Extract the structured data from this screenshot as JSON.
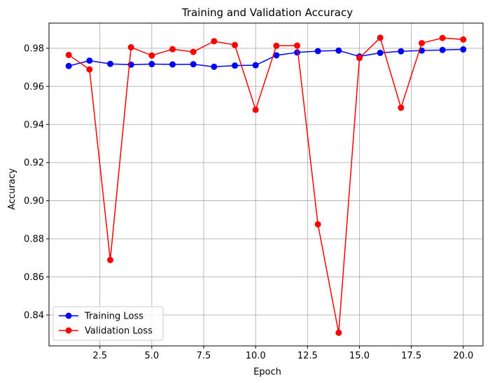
{
  "chart_data": {
    "type": "line",
    "title": "Training and Validation Accuracy",
    "xlabel": "Epoch",
    "ylabel": "Accuracy",
    "xlim": [
      0.05,
      20.95
    ],
    "ylim": [
      0.8238,
      0.9932
    ],
    "xticks": [
      2.5,
      5.0,
      7.5,
      10.0,
      12.5,
      15.0,
      17.5,
      20.0
    ],
    "xtick_labels": [
      "2.5",
      "5.0",
      "7.5",
      "10.0",
      "12.5",
      "15.0",
      "17.5",
      "20.0"
    ],
    "yticks": [
      0.84,
      0.86,
      0.88,
      0.9,
      0.92,
      0.94,
      0.96,
      0.98
    ],
    "ytick_labels": [
      "0.84",
      "0.86",
      "0.88",
      "0.90",
      "0.92",
      "0.94",
      "0.96",
      "0.98"
    ],
    "grid": true,
    "legend_position": "lower-left",
    "x": [
      1,
      2,
      3,
      4,
      5,
      6,
      7,
      8,
      9,
      10,
      11,
      12,
      13,
      14,
      15,
      16,
      17,
      18,
      19,
      20
    ],
    "series": [
      {
        "name": "Training Loss",
        "color": "#0000ff",
        "values": [
          0.9707,
          0.9735,
          0.9718,
          0.9714,
          0.9717,
          0.9715,
          0.9716,
          0.9703,
          0.9709,
          0.9711,
          0.9763,
          0.9778,
          0.9785,
          0.9788,
          0.9757,
          0.9776,
          0.9784,
          0.9788,
          0.9791,
          0.9794
        ]
      },
      {
        "name": "Validation Loss",
        "color": "#ff0000",
        "values": [
          0.9765,
          0.9689,
          0.8689,
          0.9805,
          0.9762,
          0.9795,
          0.9781,
          0.9837,
          0.9817,
          0.9477,
          0.9813,
          0.9814,
          0.8876,
          0.8307,
          0.9749,
          0.9855,
          0.9488,
          0.9827,
          0.9854,
          0.9846
        ]
      }
    ]
  }
}
